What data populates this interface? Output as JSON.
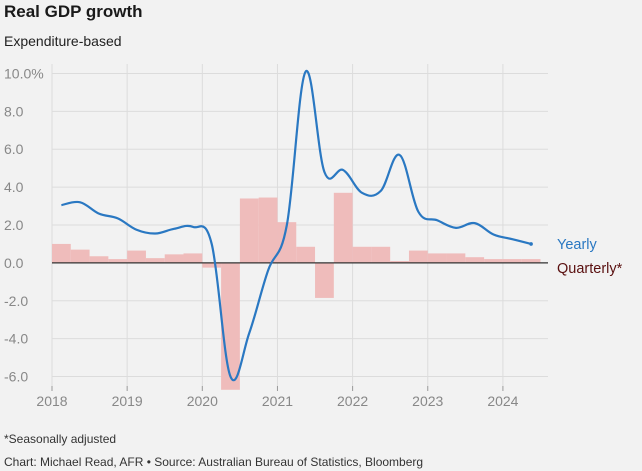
{
  "title": "Real GDP growth",
  "subtitle": "Expenditure-based",
  "footnote": "*Seasonally adjusted",
  "source": "Chart: Michael Read, AFR • Source: Australian Bureau of Statistics, Bloomberg",
  "colors": {
    "yearly_line": "#2a78c2",
    "quarterly_bars": "#efbcbb",
    "quarterly_label": "#5a1010",
    "grid": "#dcdcdc",
    "zero_line": "#333333"
  },
  "chart_data": {
    "type": "bar",
    "title": "Real GDP growth",
    "subtitle": "Expenditure-based",
    "xlabel": "",
    "ylabel": "",
    "ylim": [
      -6.5,
      10.5
    ],
    "xlim": [
      2018.0,
      2024.6
    ],
    "y_ticks": [
      -6.0,
      -4.0,
      -2.0,
      0.0,
      2.0,
      4.0,
      6.0,
      8.0,
      10.0
    ],
    "y_tick_labels": [
      "-6.0",
      "-4.0",
      "-2.0",
      "0.0",
      "2.0",
      "4.0",
      "6.0",
      "8.0",
      "10.0%"
    ],
    "x_ticks": [
      2018,
      2019,
      2020,
      2021,
      2022,
      2023,
      2024
    ],
    "x_tick_labels": [
      "2018",
      "2019",
      "2020",
      "2021",
      "2022",
      "2023",
      "2024"
    ],
    "grid": true,
    "series": [
      {
        "name": "Quarterly*",
        "type": "bar",
        "x": [
          2018.125,
          2018.375,
          2018.625,
          2018.875,
          2019.125,
          2019.375,
          2019.625,
          2019.875,
          2020.125,
          2020.375,
          2020.625,
          2020.875,
          2021.125,
          2021.375,
          2021.625,
          2021.875,
          2022.125,
          2022.375,
          2022.625,
          2022.875,
          2023.125,
          2023.375,
          2023.625,
          2023.875,
          2024.125,
          2024.375
        ],
        "values": [
          1.0,
          0.7,
          0.35,
          0.2,
          0.65,
          0.25,
          0.45,
          0.5,
          -0.25,
          -6.7,
          3.4,
          3.45,
          2.15,
          0.85,
          -1.85,
          3.7,
          0.85,
          0.85,
          0.1,
          0.65,
          0.5,
          0.5,
          0.3,
          0.2,
          0.2,
          0.2
        ]
      },
      {
        "name": "Yearly",
        "type": "line",
        "x": [
          2018.125,
          2018.375,
          2018.625,
          2018.875,
          2019.125,
          2019.375,
          2019.625,
          2019.875,
          2020.125,
          2020.375,
          2020.625,
          2020.875,
          2021.125,
          2021.375,
          2021.625,
          2021.875,
          2022.125,
          2022.375,
          2022.625,
          2022.875,
          2023.125,
          2023.375,
          2023.625,
          2023.875,
          2024.125,
          2024.375
        ],
        "values": [
          3.05,
          3.2,
          2.6,
          2.35,
          1.75,
          1.55,
          1.8,
          1.9,
          1.0,
          -6.0,
          -3.7,
          -0.4,
          2.0,
          10.1,
          4.8,
          4.9,
          3.7,
          3.8,
          5.7,
          2.7,
          2.25,
          1.85,
          2.1,
          1.5,
          1.25,
          1.0
        ]
      }
    ],
    "labels": {
      "yearly": "Yearly",
      "quarterly": "Quarterly*"
    }
  }
}
